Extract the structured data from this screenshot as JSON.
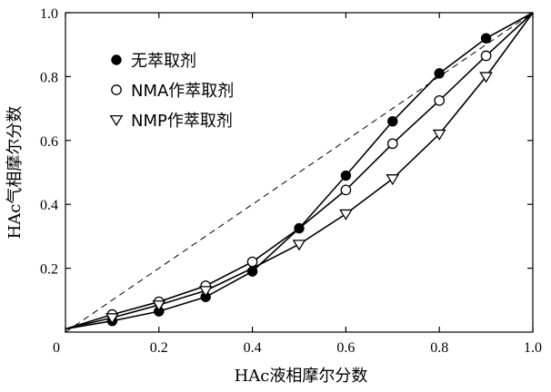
{
  "chart_data": {
    "type": "line",
    "xlabel": "HAc液相摩尔分数",
    "ylabel": "HAc气相摩尔分数",
    "xlim": [
      0,
      1.0
    ],
    "ylim": [
      0,
      1.0
    ],
    "x_ticks": [
      "0",
      "0.2",
      "0.4",
      "0.6",
      "0.8",
      "1.0"
    ],
    "y_ticks": [
      "0.2",
      "0.4",
      "0.6",
      "0.8",
      "1.0"
    ],
    "grid": false,
    "legend_position": "top-left",
    "diagonal_reference": {
      "style": "dashed",
      "from": [
        0,
        0
      ],
      "to": [
        1.0,
        1.0
      ]
    },
    "series": [
      {
        "name": "无萃取剂",
        "marker": "filled-circle",
        "x": [
          0,
          0.1,
          0.2,
          0.3,
          0.4,
          0.5,
          0.6,
          0.7,
          0.8,
          0.9,
          1.0
        ],
        "y": [
          0.01,
          0.035,
          0.065,
          0.11,
          0.19,
          0.325,
          0.49,
          0.66,
          0.81,
          0.92,
          1.0
        ],
        "marker_points": [
          1,
          2,
          3,
          4,
          5,
          6,
          7,
          8,
          9
        ]
      },
      {
        "name": "NMA作萃取剂",
        "marker": "open-circle",
        "x": [
          0,
          0.1,
          0.2,
          0.3,
          0.4,
          0.5,
          0.6,
          0.7,
          0.8,
          0.9,
          1.0
        ],
        "y": [
          0.01,
          0.055,
          0.095,
          0.145,
          0.22,
          0.325,
          0.445,
          0.59,
          0.725,
          0.865,
          1.0
        ],
        "marker_points": [
          1,
          2,
          3,
          4,
          6,
          7,
          8,
          9
        ]
      },
      {
        "name": "NMP作萃取剂",
        "marker": "open-triangle-down",
        "x": [
          0,
          0.1,
          0.2,
          0.3,
          0.4,
          0.5,
          0.6,
          0.7,
          0.8,
          0.9,
          1.0
        ],
        "y": [
          0.01,
          0.045,
          0.085,
          0.13,
          0.2,
          0.275,
          0.37,
          0.48,
          0.62,
          0.8,
          1.0
        ],
        "marker_points": [
          1,
          2,
          3,
          5,
          6,
          7,
          8,
          9
        ]
      }
    ]
  }
}
